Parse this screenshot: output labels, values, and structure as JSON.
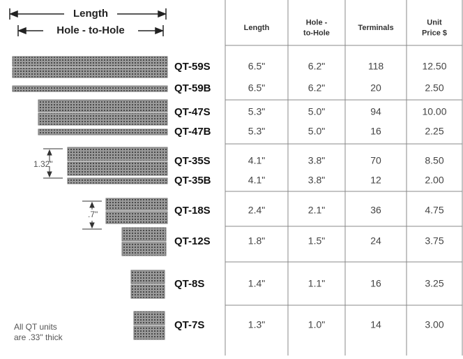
{
  "header": {
    "length": "Length",
    "hole_to_hole": "Hole - to-Hole"
  },
  "annotations": {
    "height_s": "1.32\"",
    "height_small": ".7\"",
    "thickness_line1": "All QT units",
    "thickness_line2": "are .33\" thick"
  },
  "table": {
    "columns": [
      [
        "Length"
      ],
      [
        "Hole -",
        "to-Hole"
      ],
      [
        "Terminals"
      ],
      [
        "Unit",
        "Price $"
      ]
    ],
    "rows": [
      [
        "QT-59S",
        "6.5\"",
        "6.2\"",
        "118",
        "12.50"
      ],
      [
        "QT-59B",
        "6.5\"",
        "6.2\"",
        "20",
        "2.50"
      ],
      [
        "QT-47S",
        "5.3\"",
        "5.0\"",
        "94",
        "10.00"
      ],
      [
        "QT-47B",
        "5.3\"",
        "5.0\"",
        "16",
        "2.25"
      ],
      [
        "QT-35S",
        "4.1\"",
        "3.8\"",
        "70",
        "8.50"
      ],
      [
        "QT-35B",
        "4.1\"",
        "3.8\"",
        "12",
        "2.00"
      ],
      [
        "QT-18S",
        "2.4\"",
        "2.1\"",
        "36",
        "4.75"
      ],
      [
        "QT-12S",
        "1.8\"",
        "1.5\"",
        "24",
        "3.75"
      ],
      [
        "QT-8S",
        "1.4\"",
        "1.1\"",
        "16",
        "3.25"
      ],
      [
        "QT-7S",
        "1.3\"",
        "1.0\"",
        "14",
        "3.00"
      ]
    ]
  }
}
